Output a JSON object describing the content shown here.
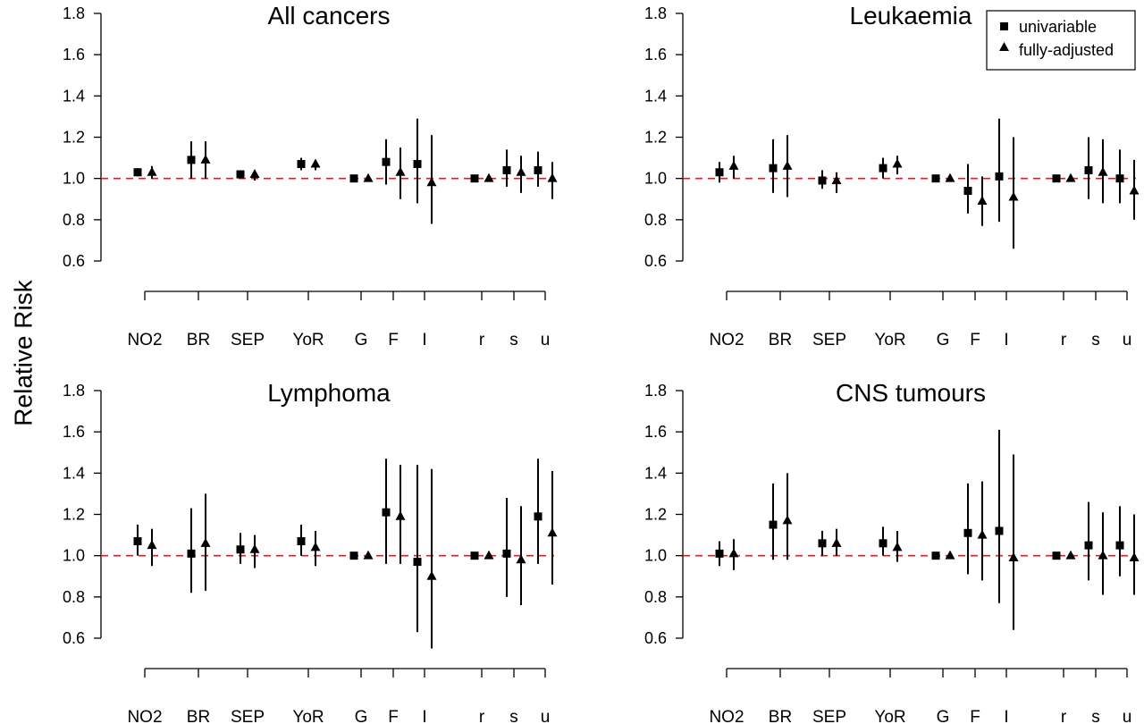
{
  "y_title": "Relative Risk",
  "legend": {
    "entries": [
      {
        "label": "univariable",
        "marker": "square"
      },
      {
        "label": "fully-adjusted",
        "marker": "triangle"
      }
    ]
  },
  "chart_data": [
    {
      "type": "scatter",
      "title": "All cancers",
      "categories": [
        "NO2",
        "BR",
        "SEP",
        "YoR",
        "G",
        "F",
        "I",
        "r",
        "s",
        "u"
      ],
      "ylim": [
        0.6,
        1.8
      ],
      "yticks": [
        0.6,
        0.8,
        1.0,
        1.2,
        1.4,
        1.6,
        1.8
      ],
      "reference_line": 1.0,
      "series": [
        {
          "name": "univariable",
          "marker": "square",
          "values": [
            1.03,
            1.09,
            1.02,
            1.07,
            1.0,
            1.08,
            1.07,
            1.0,
            1.04,
            1.04
          ],
          "lower": [
            1.01,
            1.0,
            1.0,
            1.04,
            0.99,
            0.97,
            0.88,
            0.99,
            0.96,
            0.96
          ],
          "upper": [
            1.05,
            1.18,
            1.04,
            1.1,
            1.01,
            1.19,
            1.29,
            1.01,
            1.14,
            1.13
          ]
        },
        {
          "name": "fully-adjusted",
          "marker": "triangle",
          "values": [
            1.03,
            1.09,
            1.02,
            1.07,
            1.0,
            1.03,
            0.98,
            1.0,
            1.03,
            1.0
          ],
          "lower": [
            1.0,
            1.0,
            0.99,
            1.04,
            0.99,
            0.9,
            0.78,
            0.99,
            0.93,
            0.9
          ],
          "upper": [
            1.06,
            1.18,
            1.04,
            1.09,
            1.01,
            1.15,
            1.21,
            1.01,
            1.11,
            1.08
          ]
        }
      ]
    },
    {
      "type": "scatter",
      "title": "Leukaemia",
      "categories": [
        "NO2",
        "BR",
        "SEP",
        "YoR",
        "G",
        "F",
        "I",
        "r",
        "s",
        "u"
      ],
      "ylim": [
        0.6,
        1.8
      ],
      "yticks": [
        0.6,
        0.8,
        1.0,
        1.2,
        1.4,
        1.6,
        1.8
      ],
      "reference_line": 1.0,
      "series": [
        {
          "name": "univariable",
          "marker": "square",
          "values": [
            1.03,
            1.05,
            0.99,
            1.05,
            1.0,
            0.94,
            1.01,
            1.0,
            1.04,
            1.0
          ],
          "lower": [
            0.98,
            0.93,
            0.95,
            1.0,
            0.99,
            0.83,
            0.79,
            0.99,
            0.9,
            0.88
          ],
          "upper": [
            1.08,
            1.19,
            1.04,
            1.1,
            1.01,
            1.07,
            1.29,
            1.01,
            1.2,
            1.14
          ]
        },
        {
          "name": "fully-adjusted",
          "marker": "triangle",
          "values": [
            1.06,
            1.06,
            0.99,
            1.07,
            1.0,
            0.89,
            0.91,
            1.0,
            1.03,
            0.94
          ],
          "lower": [
            1.0,
            0.91,
            0.93,
            1.02,
            0.99,
            0.77,
            0.66,
            0.99,
            0.88,
            0.8
          ],
          "upper": [
            1.11,
            1.21,
            1.03,
            1.11,
            1.01,
            1.01,
            1.2,
            1.01,
            1.19,
            1.09
          ]
        }
      ]
    },
    {
      "type": "scatter",
      "title": "Lymphoma",
      "categories": [
        "NO2",
        "BR",
        "SEP",
        "YoR",
        "G",
        "F",
        "I",
        "r",
        "s",
        "u"
      ],
      "ylim": [
        0.6,
        1.8
      ],
      "yticks": [
        0.6,
        0.8,
        1.0,
        1.2,
        1.4,
        1.6,
        1.8
      ],
      "reference_line": 1.0,
      "series": [
        {
          "name": "univariable",
          "marker": "square",
          "values": [
            1.07,
            1.01,
            1.03,
            1.07,
            1.0,
            1.21,
            0.97,
            1.0,
            1.01,
            1.19
          ],
          "lower": [
            1.0,
            0.82,
            0.96,
            1.0,
            0.99,
            0.96,
            0.63,
            0.99,
            0.8,
            0.96
          ],
          "upper": [
            1.15,
            1.23,
            1.11,
            1.15,
            1.01,
            1.47,
            1.44,
            1.01,
            1.28,
            1.47
          ]
        },
        {
          "name": "fully-adjusted",
          "marker": "triangle",
          "values": [
            1.05,
            1.06,
            1.03,
            1.04,
            1.0,
            1.19,
            0.9,
            1.0,
            0.98,
            1.11
          ],
          "lower": [
            0.95,
            0.83,
            0.94,
            0.95,
            0.99,
            0.96,
            0.55,
            0.99,
            0.76,
            0.86
          ],
          "upper": [
            1.13,
            1.3,
            1.1,
            1.12,
            1.01,
            1.44,
            1.42,
            1.01,
            1.24,
            1.41
          ]
        }
      ]
    },
    {
      "type": "scatter",
      "title": "CNS tumours",
      "categories": [
        "NO2",
        "BR",
        "SEP",
        "YoR",
        "G",
        "F",
        "I",
        "r",
        "s",
        "u"
      ],
      "ylim": [
        0.6,
        1.8
      ],
      "yticks": [
        0.6,
        0.8,
        1.0,
        1.2,
        1.4,
        1.6,
        1.8
      ],
      "reference_line": 1.0,
      "series": [
        {
          "name": "univariable",
          "marker": "square",
          "values": [
            1.01,
            1.15,
            1.06,
            1.06,
            1.0,
            1.11,
            1.12,
            1.0,
            1.05,
            1.05
          ],
          "lower": [
            0.95,
            0.98,
            1.0,
            1.0,
            0.99,
            0.91,
            0.77,
            0.99,
            0.88,
            0.9
          ],
          "upper": [
            1.07,
            1.35,
            1.12,
            1.14,
            1.01,
            1.35,
            1.61,
            1.01,
            1.26,
            1.24
          ]
        },
        {
          "name": "fully-adjusted",
          "marker": "triangle",
          "values": [
            1.01,
            1.17,
            1.06,
            1.04,
            1.0,
            1.1,
            0.99,
            1.0,
            1.0,
            0.99
          ],
          "lower": [
            0.93,
            0.98,
            1.0,
            0.97,
            0.99,
            0.88,
            0.64,
            0.99,
            0.81,
            0.81
          ],
          "upper": [
            1.08,
            1.4,
            1.13,
            1.12,
            1.01,
            1.36,
            1.49,
            1.01,
            1.21,
            1.2
          ]
        }
      ]
    }
  ]
}
